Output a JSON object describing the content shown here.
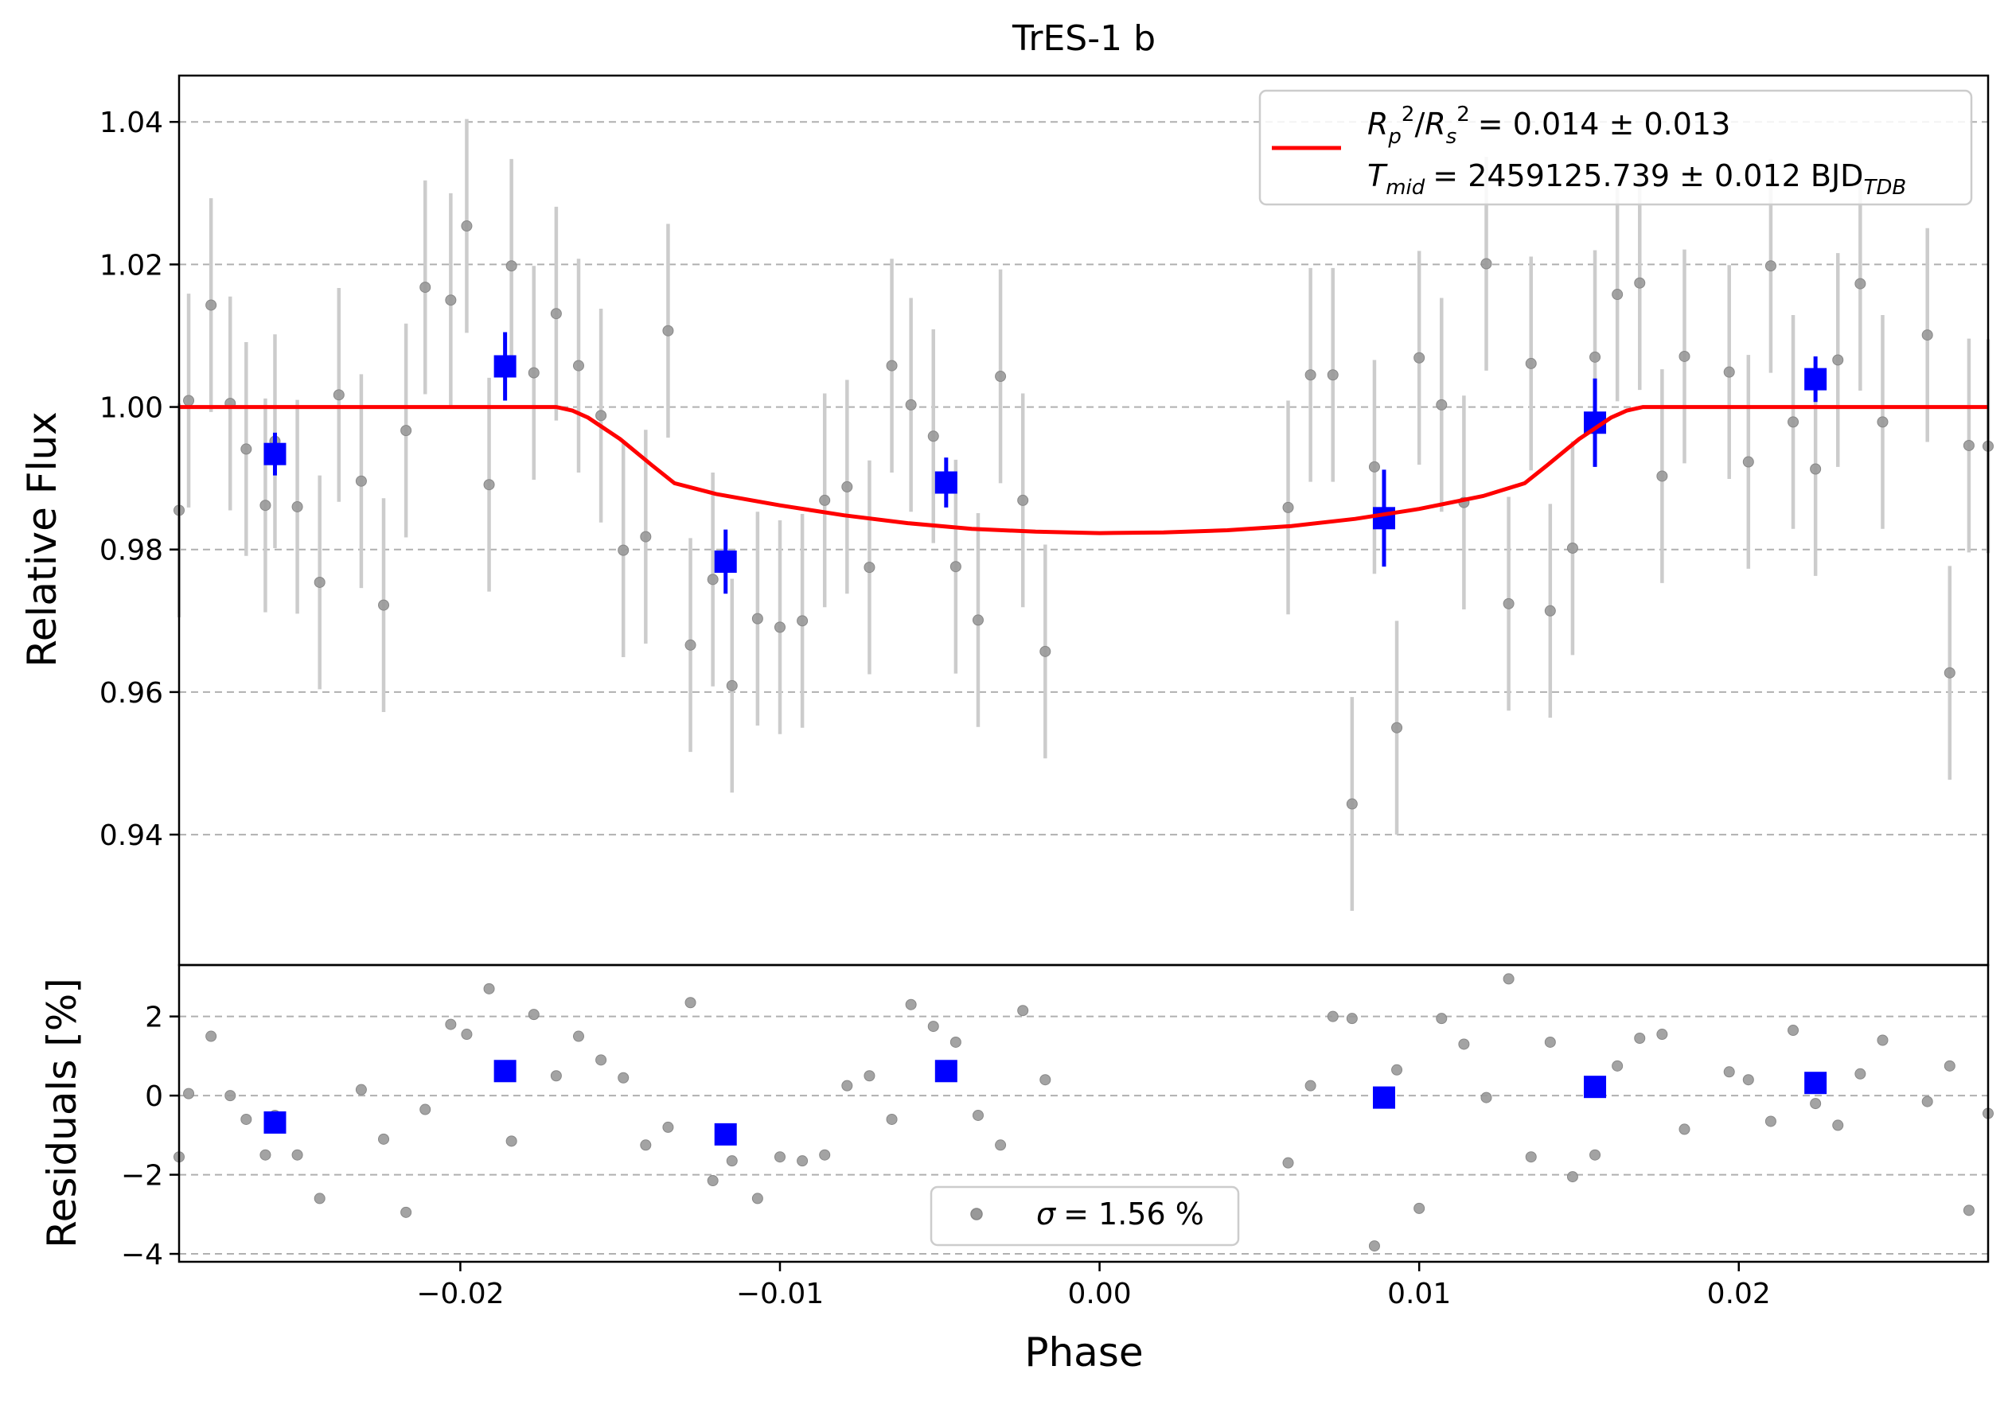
{
  "chart_data": [
    {
      "type": "scatter",
      "panel": "light-curve",
      "title": "TrES-1 b",
      "xlabel": "",
      "ylabel": "Relative Flux",
      "xlim": [
        -0.0288,
        0.0278
      ],
      "ylim": [
        0.9217,
        1.0465
      ],
      "yticks": [
        0.94,
        0.96,
        0.98,
        1.0,
        1.02,
        1.04
      ],
      "ytick_labels": [
        "0.94",
        "0.96",
        "0.98",
        "1.00",
        "1.02",
        "1.04"
      ],
      "grid": "horizontal dashed",
      "legend_position": "top-right",
      "legend": {
        "model_label_1": "= 0.014 ± 0.013",
        "model_label_2": "= 2459125.739 ± 0.012 BJD",
        "model_label_2_sub": "TDB",
        "rp_sym": "R",
        "rp_sub": "p",
        "rs_sub": "s",
        "sq": "2",
        "tmid_sym": "T",
        "tmid_sub": "mid"
      },
      "colors": {
        "raw": "#999999",
        "raw_err": "#cccccc",
        "binned": "#0000ff",
        "model": "#ff0000"
      },
      "raw": {
        "x": [
          -0.0288,
          -0.0285,
          -0.0278,
          -0.0272,
          -0.0267,
          -0.0261,
          -0.0258,
          -0.0251,
          -0.0244,
          -0.0238,
          -0.0231,
          -0.0224,
          -0.0217,
          -0.0211,
          -0.0203,
          -0.0198,
          -0.0191,
          -0.0184,
          -0.0177,
          -0.017,
          -0.0163,
          -0.0156,
          -0.0149,
          -0.0142,
          -0.0135,
          -0.0128,
          -0.0121,
          -0.0115,
          -0.0107,
          -0.01,
          -0.0093,
          -0.0086,
          -0.0079,
          -0.0072,
          -0.0065,
          -0.0059,
          -0.0052,
          -0.0045,
          -0.0038,
          -0.0031,
          -0.0024,
          -0.0017,
          0.0059,
          0.0066,
          0.0073,
          0.0079,
          0.0086,
          0.0093,
          0.01,
          0.0107,
          0.0114,
          0.0121,
          0.0128,
          0.0135,
          0.0141,
          0.0148,
          0.0155,
          0.0162,
          0.0169,
          0.0176,
          0.0183,
          0.0197,
          0.0203,
          0.021,
          0.0217,
          0.0224,
          0.0231,
          0.0238,
          0.0245,
          0.0259,
          0.0266,
          0.0272,
          0.0278
        ],
        "y": [
          0.9855,
          1.0009,
          1.0143,
          1.0005,
          0.9941,
          0.9862,
          0.9952,
          0.986,
          0.9754,
          1.0017,
          0.9896,
          0.9722,
          0.9967,
          1.0168,
          1.015,
          1.0254,
          0.9891,
          1.0198,
          1.0048,
          1.0131,
          1.0058,
          0.9988,
          0.9799,
          0.9818,
          1.0107,
          0.9666,
          0.9758,
          0.9609,
          0.9703,
          0.9691,
          0.97,
          0.9869,
          0.9888,
          0.9775,
          1.0058,
          1.0003,
          0.9959,
          0.9776,
          0.9701,
          1.0043,
          0.9869,
          0.9657,
          0.9859,
          1.0045,
          1.0045,
          0.9443,
          0.9916,
          0.955,
          1.0069,
          1.0003,
          0.9866,
          1.0201,
          0.9724,
          1.0061,
          0.9714,
          0.9802,
          1.007,
          1.0158,
          1.0174,
          0.9903,
          1.0071,
          1.0049,
          0.9923,
          1.0198,
          0.9979,
          0.9913,
          1.0066,
          1.0173,
          0.9979,
          1.0101,
          0.9627,
          0.9946,
          0.9945
        ],
        "err": [
          0.015,
          0.015,
          0.015,
          0.015,
          0.015,
          0.015,
          0.015,
          0.015,
          0.015,
          0.015,
          0.015,
          0.015,
          0.015,
          0.015,
          0.015,
          0.015,
          0.015,
          0.015,
          0.015,
          0.015,
          0.015,
          0.015,
          0.015,
          0.015,
          0.015,
          0.015,
          0.015,
          0.015,
          0.015,
          0.015,
          0.015,
          0.015,
          0.015,
          0.015,
          0.015,
          0.015,
          0.015,
          0.015,
          0.015,
          0.015,
          0.015,
          0.015,
          0.015,
          0.015,
          0.015,
          0.015,
          0.015,
          0.015,
          0.015,
          0.015,
          0.015,
          0.015,
          0.015,
          0.015,
          0.015,
          0.015,
          0.015,
          0.015,
          0.015,
          0.015,
          0.015,
          0.015,
          0.015,
          0.015,
          0.015,
          0.015,
          0.015,
          0.015,
          0.015,
          0.015,
          0.015,
          0.015,
          0.015
        ]
      },
      "binned": {
        "x": [
          -0.0258,
          -0.0186,
          -0.0117,
          -0.0048,
          0.0089,
          0.0155,
          0.0224
        ],
        "y": [
          0.9934,
          1.0057,
          0.9783,
          0.9894,
          0.9844,
          0.9978,
          1.0039
        ],
        "err": [
          0.003,
          0.0048,
          0.0045,
          0.0035,
          0.0068,
          0.0062,
          0.0032
        ]
      },
      "model": {
        "x": [
          -0.0288,
          -0.017,
          -0.0165,
          -0.016,
          -0.015,
          -0.014,
          -0.0133,
          -0.012,
          -0.01,
          -0.008,
          -0.006,
          -0.004,
          -0.002,
          0.0,
          0.002,
          0.004,
          0.006,
          0.008,
          0.01,
          0.012,
          0.0133,
          0.014,
          0.015,
          0.016,
          0.0165,
          0.017,
          0.0278
        ],
        "y": [
          1.0,
          1.0,
          0.9995,
          0.9985,
          0.9955,
          0.9918,
          0.9893,
          0.9878,
          0.9862,
          0.9848,
          0.9837,
          0.9829,
          0.9825,
          0.9823,
          0.9824,
          0.9827,
          0.9833,
          0.9843,
          0.9857,
          0.9875,
          0.9893,
          0.9918,
          0.9955,
          0.9985,
          0.9995,
          1.0,
          1.0
        ]
      }
    },
    {
      "type": "scatter",
      "panel": "residuals",
      "xlabel": "Phase",
      "ylabel": "Residuals [%]",
      "xlim": [
        -0.0288,
        0.0278
      ],
      "ylim": [
        -4.2,
        3.3
      ],
      "xticks": [
        -0.02,
        -0.01,
        0.0,
        0.01,
        0.02
      ],
      "xtick_labels": [
        "−0.02",
        "−0.01",
        "0.00",
        "0.01",
        "0.02"
      ],
      "yticks": [
        -4,
        -2,
        0,
        2
      ],
      "ytick_labels": [
        "−4",
        "−2",
        "0",
        "2"
      ],
      "grid": "horizontal dashed",
      "legend_position": "bottom-center",
      "legend": {
        "sigma_sym": "σ",
        "sigma_text": "= 1.56 %"
      },
      "raw": {
        "x": [
          -0.0288,
          -0.0285,
          -0.0278,
          -0.0272,
          -0.0267,
          -0.0261,
          -0.0258,
          -0.0251,
          -0.0244,
          -0.0231,
          -0.0224,
          -0.0217,
          -0.0211,
          -0.0203,
          -0.0198,
          -0.0191,
          -0.0184,
          -0.0177,
          -0.017,
          -0.0163,
          -0.0156,
          -0.0149,
          -0.0142,
          -0.0135,
          -0.0128,
          -0.0121,
          -0.0115,
          -0.0107,
          -0.01,
          -0.0093,
          -0.0086,
          -0.0079,
          -0.0072,
          -0.0065,
          -0.0059,
          -0.0052,
          -0.0045,
          -0.0038,
          -0.0031,
          -0.0024,
          -0.0017,
          0.0059,
          0.0066,
          0.0073,
          0.0079,
          0.0086,
          0.0093,
          0.01,
          0.0107,
          0.0114,
          0.0121,
          0.0128,
          0.0135,
          0.0141,
          0.0148,
          0.0155,
          0.0162,
          0.0169,
          0.0176,
          0.0183,
          0.0197,
          0.0203,
          0.021,
          0.0217,
          0.0224,
          0.0231,
          0.0238,
          0.0245,
          0.0259,
          0.0266,
          0.0272,
          0.0278
        ],
        "y": [
          -1.55,
          0.05,
          1.5,
          0.0,
          -0.6,
          -1.5,
          -0.5,
          -1.5,
          -2.6,
          0.15,
          -1.1,
          -2.95,
          -0.35,
          1.8,
          1.55,
          2.7,
          -1.15,
          2.05,
          0.5,
          1.5,
          0.9,
          0.45,
          -1.25,
          -0.8,
          2.35,
          -2.15,
          -1.65,
          -2.6,
          -1.55,
          -1.65,
          -1.5,
          0.25,
          0.5,
          -0.6,
          2.3,
          1.75,
          1.35,
          -0.5,
          -1.25,
          2.15,
          0.4,
          -1.7,
          0.25,
          2.0,
          1.95,
          -3.8,
          0.65,
          -2.85,
          1.95,
          1.3,
          -0.05,
          2.95,
          -1.55,
          1.35,
          -2.05,
          -1.5,
          0.75,
          1.45,
          1.55,
          -0.85,
          0.6,
          0.4,
          -0.65,
          1.65,
          -0.2,
          -0.75,
          0.55,
          1.4,
          -0.15,
          0.75,
          -2.9,
          -0.45
        ]
      },
      "binned": {
        "x": [
          -0.0258,
          -0.0186,
          -0.0117,
          -0.0048,
          0.0089,
          0.0155,
          0.0224
        ],
        "y": [
          -0.68,
          0.62,
          -0.98,
          0.62,
          -0.05,
          0.22,
          0.32
        ]
      }
    }
  ]
}
